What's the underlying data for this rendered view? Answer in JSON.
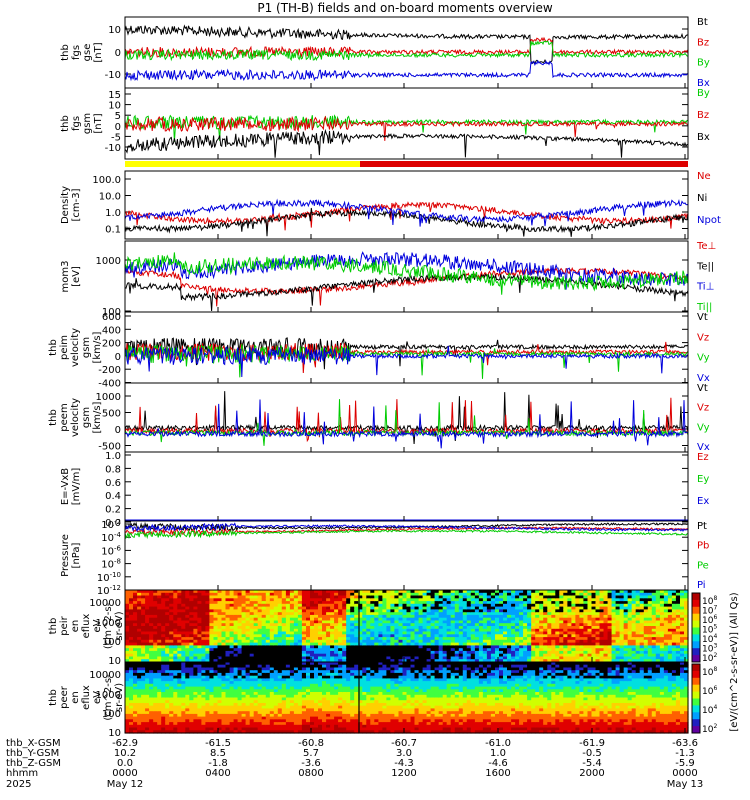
{
  "title": "P1 (TH-B) fields and on-board moments overview",
  "chart_data": [
    {
      "type": "line",
      "ylabel": [
        "thb",
        "fgs",
        "gse",
        "[nT]"
      ],
      "yticks": [
        10,
        0,
        -10
      ],
      "ylim": [
        -18,
        18
      ],
      "legend": [
        {
          "label": "Bt",
          "color": "#000000"
        },
        {
          "label": "Bz",
          "color": "#dd0000"
        },
        {
          "label": "By",
          "color": "#00cc00"
        },
        {
          "label": "Bx",
          "color": "#0000dd"
        }
      ]
    },
    {
      "type": "line",
      "ylabel": [
        "thb",
        "fgs",
        "gsm",
        "[nT]"
      ],
      "yticks": [
        15,
        10,
        5,
        0,
        -5,
        -10
      ],
      "ylim": [
        -14,
        17
      ],
      "legend": [
        {
          "label": "By",
          "color": "#00cc00"
        },
        {
          "label": "Bz",
          "color": "#dd0000"
        },
        {
          "label": "Bx",
          "color": "#000000"
        }
      ]
    },
    {
      "type": "line",
      "ylabel": [
        "Density",
        "[cm-3]"
      ],
      "yticks": [
        "100.0",
        "10.0",
        "1.0",
        "0.1"
      ],
      "ylim": [
        0.03,
        200
      ],
      "log": true,
      "legend": [
        {
          "label": "Ne",
          "color": "#dd0000"
        },
        {
          "label": "Ni",
          "color": "#000000"
        },
        {
          "label": "Npot",
          "color": "#0000dd"
        }
      ]
    },
    {
      "type": "line",
      "ylabel": [
        "mom3",
        "[eV]"
      ],
      "yticks": [
        "1000",
        "100"
      ],
      "ylim": [
        40,
        3000
      ],
      "log": true,
      "legend": [
        {
          "label": "Te⊥",
          "color": "#dd0000"
        },
        {
          "label": "Te||",
          "color": "#000000"
        },
        {
          "label": "Ti⊥",
          "color": "#0000dd"
        },
        {
          "label": "Ti||",
          "color": "#00cc00"
        }
      ]
    },
    {
      "type": "line",
      "ylabel": [
        "thb",
        "peim",
        "velocity",
        "gsm",
        "[km/s]"
      ],
      "yticks": [
        600,
        400,
        200,
        0,
        -200,
        -400
      ],
      "ylim": [
        -500,
        650
      ],
      "legend": [
        {
          "label": "Vt",
          "color": "#000000"
        },
        {
          "label": "Vz",
          "color": "#dd0000"
        },
        {
          "label": "Vy",
          "color": "#00cc00"
        },
        {
          "label": "Vx",
          "color": "#0000dd"
        }
      ]
    },
    {
      "type": "line",
      "ylabel": [
        "thb",
        "peem",
        "velocity",
        "gsm",
        "[km/s]"
      ],
      "yticks": [
        1000,
        500,
        0,
        -500
      ],
      "ylim": [
        -650,
        1450
      ],
      "legend": [
        {
          "label": "Vt",
          "color": "#000000"
        },
        {
          "label": "Vz",
          "color": "#dd0000"
        },
        {
          "label": "Vy",
          "color": "#00cc00"
        },
        {
          "label": "Vx",
          "color": "#0000dd"
        }
      ]
    },
    {
      "type": "line",
      "ylabel": [
        "E=-VxB",
        "[mV/m]"
      ],
      "yticks": [
        "1.0",
        "0.8",
        "0.6",
        "0.4",
        "0.2",
        "0.0"
      ],
      "ylim": [
        0,
        1
      ],
      "legend": [
        {
          "label": "Ez",
          "color": "#dd0000"
        },
        {
          "label": "Ey",
          "color": "#00cc00"
        },
        {
          "label": "Ex",
          "color": "#0000dd"
        }
      ]
    },
    {
      "type": "line",
      "ylabel": [
        "Pressure",
        "[nPa]"
      ],
      "yticks": [
        "-2",
        "-4",
        "-6",
        "-8",
        "-10",
        "-12"
      ],
      "ylim": [
        -13,
        -1.5
      ],
      "log": true,
      "legend": [
        {
          "label": "Pt",
          "color": "#000000"
        },
        {
          "label": "Pb",
          "color": "#dd0000"
        },
        {
          "label": "Pe",
          "color": "#00cc00"
        },
        {
          "label": "Pi",
          "color": "#0000dd"
        }
      ]
    },
    {
      "type": "heatmap",
      "ylabel": [
        "thb",
        "peir",
        "en",
        "eflux",
        "eV",
        "(cm^2-s-",
        "sr-eV)"
      ],
      "yticks": [
        "10000",
        "1000",
        "100",
        "10"
      ],
      "ylim": [
        5,
        25000
      ],
      "log": true
    },
    {
      "type": "heatmap",
      "ylabel": [
        "thb",
        "peer",
        "en",
        "eflux",
        "eV",
        "(cm^2-s-",
        "sr-eV)"
      ],
      "yticks": [
        "10000",
        "1000",
        "100",
        "10"
      ],
      "ylim": [
        5,
        25000
      ],
      "log": true
    }
  ],
  "colorbar_top": {
    "ticks": [
      "8",
      "7",
      "6",
      "5",
      "4",
      "3",
      "2"
    ]
  },
  "colorbar_bottom": {
    "ticks": [
      "8",
      "6",
      "4",
      "2"
    ]
  },
  "colorbar_label": "[eV/(cm^2-s-sr-eV)] (All Qs)",
  "xaxis": {
    "rows": [
      {
        "label": "thb_X-GSM",
        "values": [
          "-62.9",
          "-61.5",
          "-60.8",
          "-60.7",
          "-61.0",
          "-61.9",
          "-63.6"
        ]
      },
      {
        "label": "thb_Y-GSM",
        "values": [
          "10.2",
          "8.5",
          "5.7",
          "3.0",
          "1.0",
          "-0.5",
          "-1.3"
        ]
      },
      {
        "label": "thb_Z-GSM",
        "values": [
          "0.0",
          "-1.8",
          "-3.6",
          "-4.3",
          "-4.6",
          "-5.4",
          "-5.9"
        ]
      },
      {
        "label": "hhmm",
        "values": [
          "0000",
          "0400",
          "0800",
          "1200",
          "1600",
          "2000",
          "0000"
        ]
      }
    ],
    "year": "2025",
    "date_start": "May 12",
    "date_end": "May 13"
  }
}
